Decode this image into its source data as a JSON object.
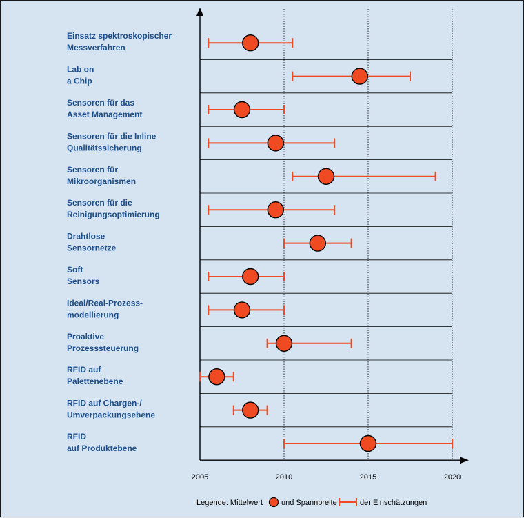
{
  "chart_data": {
    "type": "scatter",
    "title": "",
    "xlabel": "",
    "ylabel": "",
    "xlim": [
      2005,
      2020
    ],
    "xticks": [
      2005,
      2010,
      2015,
      2020
    ],
    "categories": [
      {
        "label1": "Einsatz spektroskopischer",
        "label2": "Messverfahren",
        "mean": 2008.0,
        "low": 2005.5,
        "high": 2010.5
      },
      {
        "label1": "Lab on",
        "label2": "a Chip",
        "mean": 2014.5,
        "low": 2010.5,
        "high": 2017.5
      },
      {
        "label1": "Sensoren für das",
        "label2": "Asset Management",
        "mean": 2007.5,
        "low": 2005.5,
        "high": 2010.0
      },
      {
        "label1": "Sensoren für die Inline",
        "label2": "Qualitätssicherung",
        "mean": 2009.5,
        "low": 2005.5,
        "high": 2013.0
      },
      {
        "label1": "Sensoren für",
        "label2": "Mikroorganismen",
        "mean": 2012.5,
        "low": 2010.5,
        "high": 2019.0
      },
      {
        "label1": "Sensoren für die",
        "label2": "Reinigungsoptimierung",
        "mean": 2009.5,
        "low": 2005.5,
        "high": 2013.0
      },
      {
        "label1": "Drahtlose",
        "label2": "Sensornetze",
        "mean": 2012.0,
        "low": 2010.0,
        "high": 2014.0
      },
      {
        "label1": "Soft",
        "label2": "Sensors",
        "mean": 2008.0,
        "low": 2005.5,
        "high": 2010.0
      },
      {
        "label1": "Ideal/Real-Prozess-",
        "label2": "modellierung",
        "mean": 2007.5,
        "low": 2005.5,
        "high": 2010.0
      },
      {
        "label1": "Proaktive",
        "label2": "Prozesssteuerung",
        "mean": 2010.0,
        "low": 2009.0,
        "high": 2014.0
      },
      {
        "label1": "RFID auf",
        "label2": "Palettenebene",
        "mean": 2006.0,
        "low": 2005.0,
        "high": 2007.0
      },
      {
        "label1": "RFID auf Chargen-/",
        "label2": "Umverpackungsebene",
        "mean": 2008.0,
        "low": 2007.0,
        "high": 2009.0
      },
      {
        "label1": "RFID",
        "label2": "auf Produktebene",
        "mean": 2015.0,
        "low": 2010.0,
        "high": 2020.0
      }
    ],
    "legend": {
      "prefix": "Legende: Mittelwert",
      "middle": "und Spannbreite",
      "suffix": "der Einschätzungen"
    },
    "grid": true
  },
  "colors": {
    "marker_fill": "#f04a22",
    "range_line": "#f04a22",
    "label": "#1d4f8c",
    "background": "#d6e4f2",
    "axis": "#000000"
  }
}
